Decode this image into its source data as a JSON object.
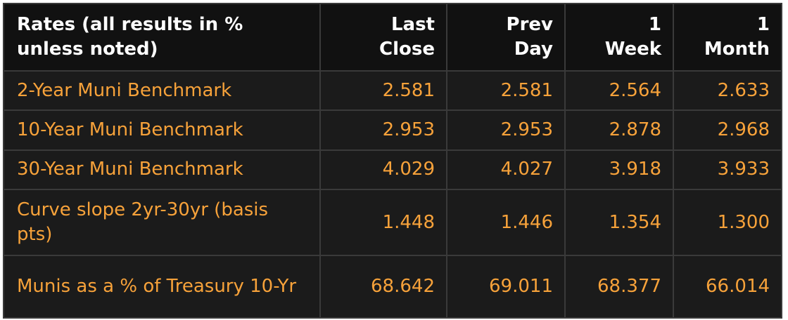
{
  "table": {
    "header": [
      "Rates (all results in % unless noted)",
      "Last Close",
      "Prev Day",
      "1 Week",
      "1 Month"
    ],
    "rows": [
      [
        "2-Year Muni Benchmark",
        "2.581",
        "2.581",
        "2.564",
        "2.633"
      ],
      [
        "10-Year Muni Benchmark",
        "2.953",
        "2.953",
        "2.878",
        "2.968"
      ],
      [
        "30-Year Muni Benchmark",
        "4.029",
        "4.027",
        "3.918",
        "3.933"
      ],
      [
        "Curve slope 2yr-30yr (basis pts)",
        "1.448",
        "1.446",
        "1.354",
        "1.300"
      ],
      [
        "Munis as a % of Treasury 10-Yr",
        "68.642",
        "69.011",
        "68.377",
        "66.014"
      ]
    ]
  }
}
